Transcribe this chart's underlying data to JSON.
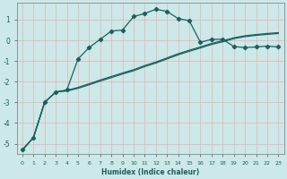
{
  "xlabel": "Humidex (Indice chaleur)",
  "bg_color": "#cce8e8",
  "grid_color": "#e8b0b0",
  "line_color": "#1a6060",
  "spine_color": "#888888",
  "xlim": [
    -0.5,
    23.5
  ],
  "ylim": [
    -5.5,
    1.8
  ],
  "xticks": [
    0,
    1,
    2,
    3,
    4,
    5,
    6,
    7,
    8,
    9,
    10,
    11,
    12,
    13,
    14,
    15,
    16,
    17,
    18,
    19,
    20,
    21,
    22,
    23
  ],
  "yticks": [
    -5,
    -4,
    -3,
    -2,
    -1,
    0,
    1
  ],
  "curve1_x": [
    0,
    1,
    2,
    3,
    4,
    5,
    6,
    7,
    8,
    9,
    10,
    11,
    12,
    13,
    14,
    15,
    16,
    17,
    18,
    19,
    20,
    21,
    22,
    23
  ],
  "curve1_y": [
    -5.3,
    -4.7,
    -3.0,
    -2.5,
    -2.4,
    -0.9,
    -0.35,
    0.05,
    0.45,
    0.5,
    1.15,
    1.3,
    1.5,
    1.4,
    1.05,
    0.95,
    -0.1,
    0.05,
    0.05,
    -0.3,
    -0.35,
    -0.32,
    -0.28,
    -0.32
  ],
  "curve2_x": [
    0,
    1,
    2,
    3,
    4,
    5,
    6,
    7,
    8,
    9,
    10,
    11,
    12,
    13,
    14,
    15,
    16,
    17,
    18,
    19,
    20,
    21,
    22,
    23
  ],
  "curve2_y": [
    -5.3,
    -4.7,
    -3.0,
    -2.5,
    -2.42,
    -2.28,
    -2.1,
    -1.92,
    -1.75,
    -1.58,
    -1.42,
    -1.22,
    -1.05,
    -0.85,
    -0.65,
    -0.48,
    -0.32,
    -0.15,
    -0.02,
    0.12,
    0.22,
    0.28,
    0.33,
    0.37
  ],
  "curve3_x": [
    0,
    1,
    2,
    3,
    4,
    5,
    6,
    7,
    8,
    9,
    10,
    11,
    12,
    13,
    14,
    15,
    16,
    17,
    18,
    19,
    20,
    21,
    22,
    23
  ],
  "curve3_y": [
    -5.3,
    -4.7,
    -3.0,
    -2.5,
    -2.45,
    -2.32,
    -2.15,
    -1.97,
    -1.8,
    -1.63,
    -1.47,
    -1.27,
    -1.1,
    -0.9,
    -0.7,
    -0.53,
    -0.37,
    -0.2,
    -0.07,
    0.08,
    0.18,
    0.24,
    0.29,
    0.33
  ]
}
